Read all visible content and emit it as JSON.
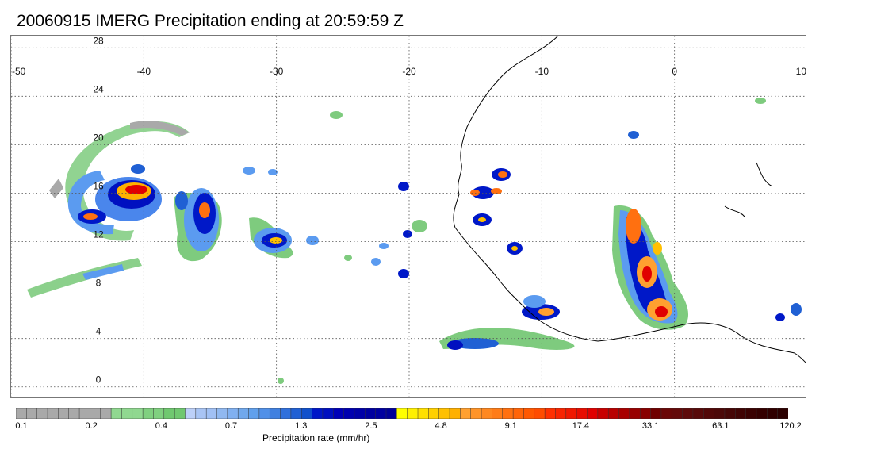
{
  "title": "20060915 IMERG Precipitation ending at 20:59:59 Z",
  "map": {
    "lon_range": [
      -50,
      10
    ],
    "lat_range": [
      -1,
      29
    ],
    "lon_ticks": [
      {
        "value": -50,
        "label": "-50"
      },
      {
        "value": -40,
        "label": "-40"
      },
      {
        "value": -30,
        "label": "-30"
      },
      {
        "value": -20,
        "label": "-20"
      },
      {
        "value": -10,
        "label": "-10"
      },
      {
        "value": 0,
        "label": "0"
      },
      {
        "value": 10,
        "label": "10"
      }
    ],
    "lat_ticks": [
      {
        "value": 0,
        "label": "0"
      },
      {
        "value": 4,
        "label": "4"
      },
      {
        "value": 8,
        "label": "8"
      },
      {
        "value": 12,
        "label": "12"
      },
      {
        "value": 16,
        "label": "16"
      },
      {
        "value": 20,
        "label": "20"
      },
      {
        "value": 24,
        "label": "24"
      },
      {
        "value": 28,
        "label": "28"
      }
    ],
    "grid": "dotted"
  },
  "colorbar": {
    "title": "Precipitation rate (mm/hr)",
    "colors": [
      "#a9a9a9",
      "#a9a9a9",
      "#a9a9a9",
      "#a9a9a9",
      "#a9a9a9",
      "#a9a9a9",
      "#a9a9a9",
      "#a9a9a9",
      "#a9a9a9",
      "#90d890",
      "#90d890",
      "#90d890",
      "#80d080",
      "#80d080",
      "#70c870",
      "#70c870",
      "#bcd0f8",
      "#a8c4f4",
      "#a0c0f4",
      "#90b8f0",
      "#80b0f0",
      "#70a8ec",
      "#60a0ec",
      "#5090e8",
      "#4080e0",
      "#3070dc",
      "#2060d4",
      "#1050cc",
      "#0018c8",
      "#0010c0",
      "#0000b8",
      "#0000b0",
      "#0000a8",
      "#0000a0",
      "#0000a0",
      "#000098",
      "#ffff00",
      "#fff000",
      "#ffe000",
      "#ffd000",
      "#ffc000",
      "#ffb000",
      "#ffa030",
      "#ff9428",
      "#ff8820",
      "#ff7c18",
      "#ff7010",
      "#ff6408",
      "#ff5800",
      "#ff4c00",
      "#ff3000",
      "#f82400",
      "#f01800",
      "#e80c00",
      "#e00000",
      "#c80000",
      "#b80000",
      "#a80000",
      "#980000",
      "#880000",
      "#700000",
      "#6a0808",
      "#640a0a",
      "#5e0a0a",
      "#580a0a",
      "#520808",
      "#4c0808",
      "#460606",
      "#400404",
      "#3a0202",
      "#340000",
      "#300000",
      "#2c0000"
    ],
    "labels": [
      "0.1",
      "0.2",
      "0.4",
      "0.7",
      "1.3",
      "2.5",
      "4.8",
      "9.1",
      "17.4",
      "33.1",
      "63.1",
      "120.2"
    ]
  }
}
